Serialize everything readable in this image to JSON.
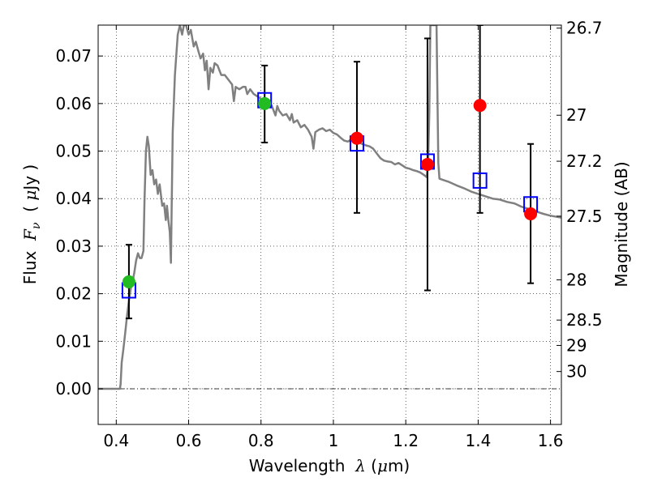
{
  "chart_data": {
    "type": "scatter",
    "title": "",
    "xlabel_parts": [
      "Wavelength  ",
      "λ",
      " (",
      "μ",
      "m)"
    ],
    "ylabel_parts": [
      "Flux  ",
      "F",
      "ν",
      "  ( ",
      "μ",
      "Jy )"
    ],
    "y2label": "Magnitude (AB)",
    "xlim": [
      0.35,
      1.63
    ],
    "ylim": [
      -0.0075,
      0.0765
    ],
    "xticks": [
      {
        "value": 0.4,
        "label": "0.4"
      },
      {
        "value": 0.6,
        "label": "0.6"
      },
      {
        "value": 0.8,
        "label": "0.8"
      },
      {
        "value": 1.0,
        "label": "1"
      },
      {
        "value": 1.2,
        "label": "1.2"
      },
      {
        "value": 1.4,
        "label": "1.4"
      },
      {
        "value": 1.6,
        "label": "1.6"
      }
    ],
    "yticks": [
      {
        "value": 0.0,
        "label": "0.00"
      },
      {
        "value": 0.01,
        "label": "0.01"
      },
      {
        "value": 0.02,
        "label": "0.02"
      },
      {
        "value": 0.03,
        "label": "0.03"
      },
      {
        "value": 0.04,
        "label": "0.04"
      },
      {
        "value": 0.05,
        "label": "0.05"
      },
      {
        "value": 0.06,
        "label": "0.06"
      },
      {
        "value": 0.07,
        "label": "0.07"
      }
    ],
    "y2ticks": [
      {
        "value": 26.7,
        "label": "26.7"
      },
      {
        "value": 27.0,
        "label": "27"
      },
      {
        "value": 27.2,
        "label": "27.2"
      },
      {
        "value": 27.5,
        "label": "27.5"
      },
      {
        "value": 28.0,
        "label": "28"
      },
      {
        "value": 28.5,
        "label": "28.5"
      },
      {
        "value": 29.0,
        "label": "29"
      },
      {
        "value": 30.0,
        "label": "30"
      }
    ],
    "grid": true,
    "colors": {
      "sed": "#808080",
      "model": "#0000ff",
      "detected": "#22bb22",
      "measured": "#ff0000",
      "errorbar": "#000000"
    },
    "sed": [
      [
        0.35,
        0.0
      ],
      [
        0.41,
        0.0
      ],
      [
        0.412,
        0.001
      ],
      [
        0.415,
        0.0055
      ],
      [
        0.42,
        0.0085
      ],
      [
        0.425,
        0.012
      ],
      [
        0.43,
        0.0155
      ],
      [
        0.435,
        0.0185
      ],
      [
        0.44,
        0.021
      ],
      [
        0.445,
        0.0225
      ],
      [
        0.45,
        0.0245
      ],
      [
        0.455,
        0.027
      ],
      [
        0.46,
        0.0285
      ],
      [
        0.465,
        0.0275
      ],
      [
        0.47,
        0.0275
      ],
      [
        0.475,
        0.029
      ],
      [
        0.478,
        0.0395
      ],
      [
        0.482,
        0.05
      ],
      [
        0.486,
        0.053
      ],
      [
        0.49,
        0.051
      ],
      [
        0.495,
        0.045
      ],
      [
        0.5,
        0.046
      ],
      [
        0.505,
        0.043
      ],
      [
        0.51,
        0.044
      ],
      [
        0.515,
        0.041
      ],
      [
        0.52,
        0.043
      ],
      [
        0.527,
        0.0385
      ],
      [
        0.532,
        0.039
      ],
      [
        0.537,
        0.0355
      ],
      [
        0.54,
        0.0385
      ],
      [
        0.544,
        0.0355
      ],
      [
        0.548,
        0.033
      ],
      [
        0.551,
        0.0265
      ],
      [
        0.553,
        0.038
      ],
      [
        0.556,
        0.054
      ],
      [
        0.562,
        0.066
      ],
      [
        0.57,
        0.0745
      ],
      [
        0.576,
        0.0765
      ],
      [
        0.582,
        0.0745
      ],
      [
        0.587,
        0.0765
      ],
      [
        0.593,
        0.0765
      ],
      [
        0.6,
        0.0745
      ],
      [
        0.606,
        0.0755
      ],
      [
        0.614,
        0.072
      ],
      [
        0.62,
        0.073
      ],
      [
        0.627,
        0.071
      ],
      [
        0.633,
        0.0695
      ],
      [
        0.64,
        0.0705
      ],
      [
        0.645,
        0.067
      ],
      [
        0.65,
        0.069
      ],
      [
        0.655,
        0.063
      ],
      [
        0.66,
        0.0675
      ],
      [
        0.667,
        0.0665
      ],
      [
        0.672,
        0.0685
      ],
      [
        0.68,
        0.068
      ],
      [
        0.69,
        0.066
      ],
      [
        0.7,
        0.066
      ],
      [
        0.71,
        0.065
      ],
      [
        0.72,
        0.064
      ],
      [
        0.725,
        0.0605
      ],
      [
        0.73,
        0.0635
      ],
      [
        0.74,
        0.063
      ],
      [
        0.75,
        0.0635
      ],
      [
        0.757,
        0.0635
      ],
      [
        0.762,
        0.062
      ],
      [
        0.77,
        0.063
      ],
      [
        0.78,
        0.062
      ],
      [
        0.79,
        0.0615
      ],
      [
        0.8,
        0.061
      ],
      [
        0.81,
        0.0605
      ],
      [
        0.82,
        0.0605
      ],
      [
        0.83,
        0.0595
      ],
      [
        0.84,
        0.0575
      ],
      [
        0.845,
        0.0595
      ],
      [
        0.85,
        0.0585
      ],
      [
        0.86,
        0.0575
      ],
      [
        0.87,
        0.0578
      ],
      [
        0.88,
        0.0565
      ],
      [
        0.885,
        0.0578
      ],
      [
        0.89,
        0.056
      ],
      [
        0.9,
        0.0565
      ],
      [
        0.91,
        0.055
      ],
      [
        0.92,
        0.0555
      ],
      [
        0.93,
        0.0545
      ],
      [
        0.94,
        0.053
      ],
      [
        0.945,
        0.0505
      ],
      [
        0.95,
        0.054
      ],
      [
        0.96,
        0.0545
      ],
      [
        0.97,
        0.0548
      ],
      [
        0.98,
        0.0542
      ],
      [
        0.99,
        0.0545
      ],
      [
        1.0,
        0.0538
      ],
      [
        1.01,
        0.0535
      ],
      [
        1.02,
        0.0528
      ],
      [
        1.03,
        0.0522
      ],
      [
        1.04,
        0.052
      ],
      [
        1.05,
        0.0525
      ],
      [
        1.06,
        0.0522
      ],
      [
        1.07,
        0.0518
      ],
      [
        1.08,
        0.0515
      ],
      [
        1.09,
        0.0512
      ],
      [
        1.1,
        0.051
      ],
      [
        1.11,
        0.0505
      ],
      [
        1.12,
        0.0495
      ],
      [
        1.13,
        0.0485
      ],
      [
        1.14,
        0.048
      ],
      [
        1.15,
        0.0478
      ],
      [
        1.16,
        0.0477
      ],
      [
        1.17,
        0.0472
      ],
      [
        1.18,
        0.0475
      ],
      [
        1.19,
        0.047
      ],
      [
        1.2,
        0.0465
      ],
      [
        1.21,
        0.0463
      ],
      [
        1.22,
        0.046
      ],
      [
        1.23,
        0.0458
      ],
      [
        1.24,
        0.0455
      ],
      [
        1.25,
        0.045
      ],
      [
        1.258,
        0.0445
      ],
      [
        1.262,
        0.048
      ],
      [
        1.265,
        0.058
      ],
      [
        1.268,
        0.0765
      ],
      [
        1.285,
        0.0765
      ],
      [
        1.29,
        0.0475
      ],
      [
        1.293,
        0.0442
      ],
      [
        1.3,
        0.044
      ],
      [
        1.32,
        0.0435
      ],
      [
        1.34,
        0.0428
      ],
      [
        1.36,
        0.0422
      ],
      [
        1.38,
        0.0415
      ],
      [
        1.4,
        0.041
      ],
      [
        1.42,
        0.0405
      ],
      [
        1.44,
        0.04
      ],
      [
        1.46,
        0.0398
      ],
      [
        1.48,
        0.0393
      ],
      [
        1.5,
        0.039
      ],
      [
        1.52,
        0.0383
      ],
      [
        1.54,
        0.0378
      ],
      [
        1.56,
        0.0373
      ],
      [
        1.58,
        0.0368
      ],
      [
        1.6,
        0.0364
      ],
      [
        1.63,
        0.036
      ]
    ],
    "model_points": [
      {
        "x": 0.435,
        "y": 0.0207
      },
      {
        "x": 0.81,
        "y": 0.0607
      },
      {
        "x": 1.065,
        "y": 0.0516
      },
      {
        "x": 1.26,
        "y": 0.0478
      },
      {
        "x": 1.405,
        "y": 0.0438
      },
      {
        "x": 1.545,
        "y": 0.0388
      }
    ],
    "detections": [
      {
        "x": 0.435,
        "y": 0.0225,
        "yerr_low": 0.0148,
        "yerr_high": 0.0303,
        "color": "green"
      },
      {
        "x": 0.81,
        "y": 0.06,
        "yerr_low": 0.0518,
        "yerr_high": 0.068,
        "color": "green"
      },
      {
        "x": 1.065,
        "y": 0.0527,
        "yerr_low": 0.037,
        "yerr_high": 0.0688,
        "color": "red"
      },
      {
        "x": 1.26,
        "y": 0.0472,
        "yerr_low": 0.0207,
        "yerr_high": 0.0737,
        "color": "red"
      },
      {
        "x": 1.405,
        "y": 0.0596,
        "yerr_low": 0.037,
        "yerr_high": 0.0765,
        "color": "red"
      },
      {
        "x": 1.545,
        "y": 0.0368,
        "yerr_low": 0.0222,
        "yerr_high": 0.0515,
        "color": "red"
      }
    ]
  }
}
